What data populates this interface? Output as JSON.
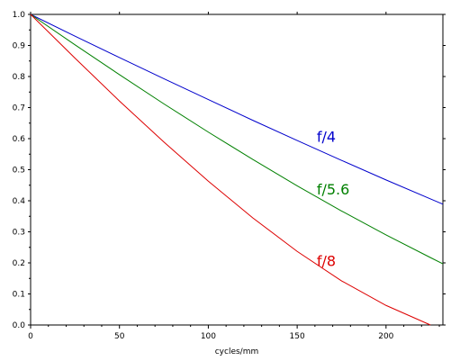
{
  "chart_data": {
    "type": "line",
    "title": "",
    "xlabel": "cycles/mm",
    "ylabel": "",
    "xlim": [
      0,
      232
    ],
    "ylim": [
      0,
      1.0
    ],
    "x_ticks": [
      "0",
      "50",
      "100",
      "150",
      "200"
    ],
    "y_ticks": [
      "0.0",
      "0.1",
      "0.2",
      "0.3",
      "0.4",
      "0.5",
      "0.6",
      "0.7",
      "0.8",
      "0.9",
      "1.0"
    ],
    "grid": false,
    "legend": "none",
    "series": [
      {
        "name": "f/4",
        "color": "#0000cc",
        "x": [
          0,
          25,
          50,
          75,
          100,
          125,
          150,
          175,
          200,
          225,
          232
        ],
        "y": [
          1.0,
          0.93,
          0.861,
          0.793,
          0.726,
          0.659,
          0.594,
          0.53,
          0.467,
          0.406,
          0.389
        ]
      },
      {
        "name": "f/5.6",
        "color": "#008000",
        "x": [
          0,
          25,
          50,
          75,
          100,
          125,
          150,
          175,
          200,
          225,
          232
        ],
        "y": [
          1.0,
          0.902,
          0.806,
          0.712,
          0.621,
          0.533,
          0.448,
          0.367,
          0.29,
          0.217,
          0.197
        ]
      },
      {
        "name": "f/8",
        "color": "#dd0000",
        "x": [
          0,
          25,
          50,
          75,
          100,
          125,
          150,
          175,
          200,
          225
        ],
        "y": [
          1.0,
          0.859,
          0.721,
          0.589,
          0.463,
          0.345,
          0.237,
          0.142,
          0.063,
          0.0
        ]
      }
    ],
    "annotations": [
      {
        "text": "f/4",
        "x": 161,
        "y": 0.59,
        "color": "#0000cc"
      },
      {
        "text": "f/5.6",
        "x": 161,
        "y": 0.42,
        "color": "#008000"
      },
      {
        "text": "f/8",
        "x": 161,
        "y": 0.19,
        "color": "#dd0000"
      }
    ]
  }
}
